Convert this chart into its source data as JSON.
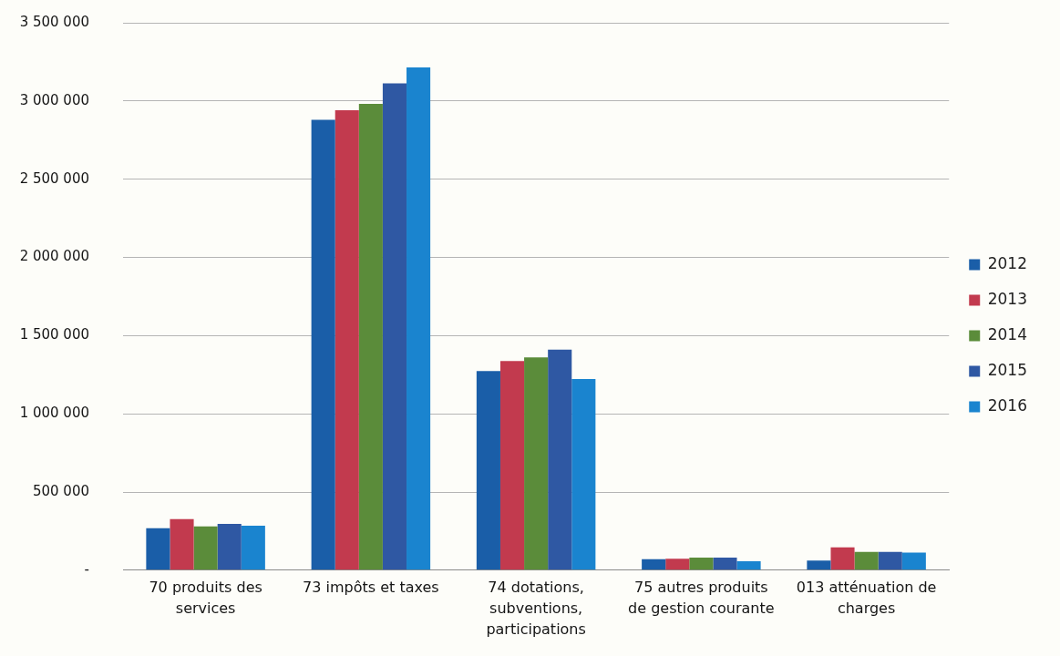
{
  "chart_data": {
    "type": "bar",
    "categories": [
      "70 produits des services",
      "73 impôts et taxes",
      "74 dotations, subventions, participations",
      "75 autres produits de gestion courante",
      "013 atténuation de charges"
    ],
    "series": [
      {
        "name": "2012",
        "color": "#1a5ea8",
        "values": [
          268000,
          2880000,
          1273000,
          70000,
          62000
        ]
      },
      {
        "name": "2013",
        "color": "#c23a4e",
        "values": [
          327000,
          2941000,
          1337000,
          74000,
          146000
        ]
      },
      {
        "name": "2014",
        "color": "#5b8c3a",
        "values": [
          280000,
          2982000,
          1361000,
          80000,
          117000
        ]
      },
      {
        "name": "2015",
        "color": "#2f58a3",
        "values": [
          296000,
          3113000,
          1410000,
          80000,
          117000
        ]
      },
      {
        "name": "2016",
        "color": "#1a84cf",
        "values": [
          284000,
          3214000,
          1223000,
          58000,
          113000
        ]
      }
    ],
    "ylim": [
      0,
      3500000
    ],
    "yticks": [
      {
        "value": 0,
        "label": "-"
      },
      {
        "value": 500000,
        "label": "500 000"
      },
      {
        "value": 1000000,
        "label": "1 000 000"
      },
      {
        "value": 1500000,
        "label": "1 500 000"
      },
      {
        "value": 2000000,
        "label": "2 000 000"
      },
      {
        "value": 2500000,
        "label": "2 500 000"
      },
      {
        "value": 3000000,
        "label": "3 000 000"
      },
      {
        "value": 3500000,
        "label": "3 500 000"
      }
    ],
    "grid": "y",
    "legend": "right"
  }
}
